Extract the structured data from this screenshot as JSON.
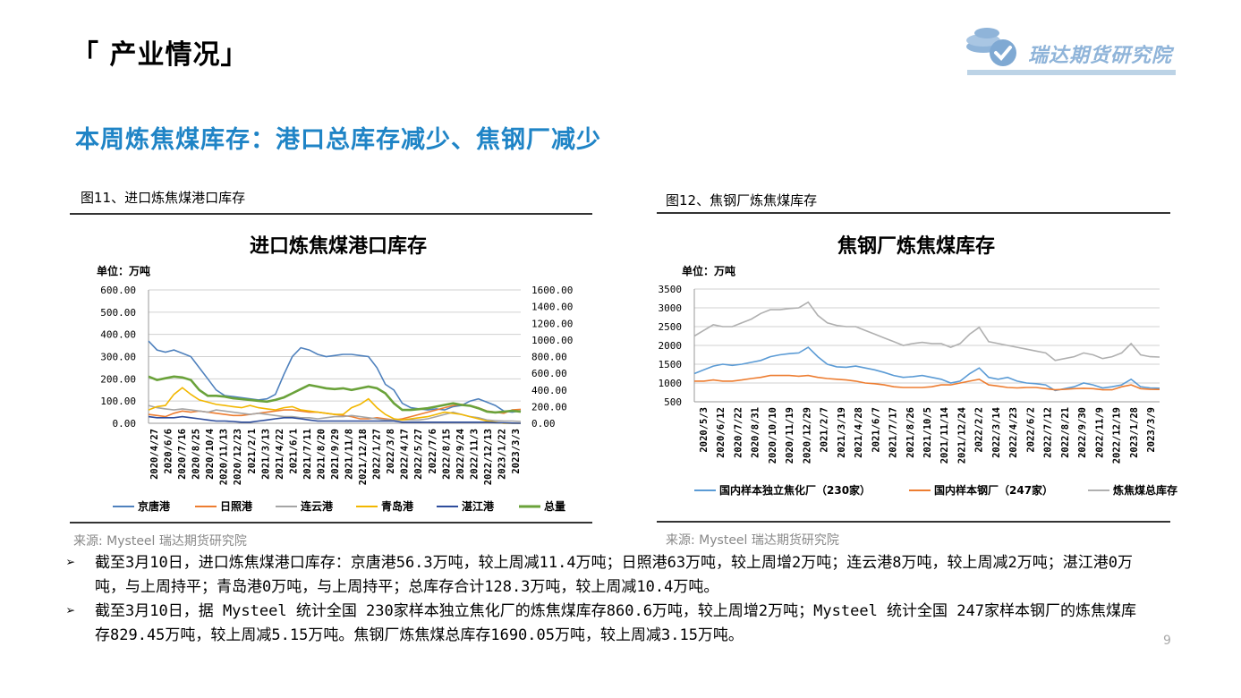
{
  "header": {
    "title": "「 产业情况」",
    "logo_text": "瑞达期货研究院"
  },
  "subtitle": "本周炼焦煤库存：港口总库存减少、焦钢厂减少",
  "figures": [
    {
      "caption": "图11、进口炼焦煤港口库存",
      "source": "来源:   Mysteel   瑞达期货研究院"
    },
    {
      "caption": "图12、焦钢厂炼焦煤库存",
      "source": "来源:   Mysteel   瑞达期货研究院"
    }
  ],
  "bullets": [
    "截至3月10日，进口炼焦煤港口库存：京唐港56.3万吨，较上周减11.4万吨；日照港63万吨，较上周增2万吨；连云港8万吨，较上周减2万吨；湛江港0万吨，与上周持平；青岛港0万吨，与上周持平；总库存合计128.3万吨，较上周减10.4万吨。",
    "截至3月10日，据 Mysteel 统计全国 230家样本独立焦化厂的炼焦煤库存860.6万吨，较上周增2万吨；Mysteel 统计全国 247家样本钢厂的炼焦煤库存829.45万吨，较上周减5.15万吨。焦钢厂炼焦煤总库存1690.05万吨，较上周减3.15万吨。"
  ],
  "page_number": "9",
  "bullet_mark": "➢",
  "chart_data": [
    {
      "type": "line",
      "title": "进口炼焦煤港口库存",
      "unit_label": "单位：万吨",
      "ylim": [
        0,
        600
      ],
      "y2lim": [
        0,
        1600
      ],
      "yticks": [
        "0.00",
        "100.00",
        "200.00",
        "300.00",
        "400.00",
        "500.00",
        "600.00"
      ],
      "y2ticks": [
        "0.00",
        "200.00",
        "400.00",
        "600.00",
        "800.00",
        "1000.00",
        "1200.00",
        "1400.00",
        "1600.00"
      ],
      "x_ticks": [
        "2020/4/27",
        "2020/6/6",
        "2020/7/16",
        "2020/8/25",
        "2020/10/4",
        "2020/11/13",
        "2020/12/23",
        "2021/2/1",
        "2021/3/13",
        "2021/4/22",
        "2021/6/1",
        "2021/7/11",
        "2021/8/20",
        "2021/9/29",
        "2021/11/8",
        "2021/12/18",
        "2022/1/27",
        "2022/3/8",
        "2022/4/17",
        "2022/5/27",
        "2022/7/6",
        "2022/8/15",
        "2022/9/24",
        "2022/11/3",
        "2022/12/13",
        "2023/1/22",
        "2023/3/3"
      ],
      "grid": true,
      "legend": "bottom",
      "series": [
        {
          "name": "京唐港",
          "axis": "left",
          "color": "#4f81bd",
          "values": [
            370,
            330,
            320,
            330,
            315,
            300,
            250,
            200,
            150,
            125,
            120,
            115,
            110,
            105,
            110,
            130,
            220,
            300,
            340,
            330,
            310,
            300,
            305,
            310,
            310,
            305,
            300,
            250,
            175,
            150,
            90,
            70,
            65,
            60,
            65,
            60,
            75,
            80,
            100,
            110,
            95,
            80,
            55,
            50,
            56
          ]
        },
        {
          "name": "日照港",
          "axis": "left",
          "color": "#ed7d31",
          "values": [
            40,
            35,
            30,
            45,
            55,
            50,
            55,
            50,
            45,
            40,
            35,
            35,
            40,
            45,
            50,
            55,
            60,
            60,
            55,
            50,
            50,
            45,
            40,
            35,
            30,
            20,
            20,
            25,
            20,
            15,
            20,
            30,
            40,
            50,
            60,
            70,
            80,
            85,
            80,
            70,
            55,
            50,
            45,
            60,
            63
          ]
        },
        {
          "name": "连云港",
          "axis": "left",
          "color": "#a5a5a5",
          "values": [
            80,
            70,
            65,
            60,
            65,
            60,
            55,
            50,
            60,
            55,
            50,
            45,
            40,
            45,
            40,
            35,
            30,
            30,
            25,
            25,
            20,
            25,
            30,
            30,
            35,
            30,
            25,
            20,
            15,
            15,
            15,
            15,
            15,
            20,
            30,
            40,
            50,
            40,
            30,
            25,
            15,
            12,
            10,
            10,
            8
          ]
        },
        {
          "name": "青岛港",
          "axis": "left",
          "color": "#f2b700",
          "values": [
            60,
            75,
            80,
            130,
            160,
            130,
            105,
            95,
            85,
            80,
            75,
            70,
            80,
            70,
            65,
            60,
            70,
            75,
            60,
            55,
            50,
            45,
            40,
            40,
            70,
            85,
            110,
            70,
            40,
            20,
            15,
            20,
            25,
            30,
            40,
            50,
            45,
            40,
            30,
            20,
            10,
            5,
            0,
            0,
            0
          ]
        },
        {
          "name": "湛江港",
          "axis": "left",
          "color": "#2e4d9c",
          "values": [
            30,
            25,
            25,
            25,
            30,
            25,
            20,
            15,
            10,
            10,
            8,
            5,
            5,
            10,
            15,
            20,
            25,
            25,
            20,
            15,
            10,
            10,
            10,
            10,
            10,
            10,
            10,
            10,
            10,
            10,
            5,
            5,
            5,
            5,
            5,
            5,
            5,
            5,
            5,
            5,
            5,
            3,
            2,
            1,
            0
          ]
        },
        {
          "name": "总量",
          "axis": "right",
          "color": "#6aa23a",
          "values": [
            560,
            520,
            540,
            560,
            550,
            520,
            400,
            330,
            330,
            320,
            300,
            290,
            280,
            270,
            260,
            280,
            310,
            360,
            410,
            460,
            440,
            420,
            410,
            420,
            400,
            420,
            440,
            420,
            360,
            240,
            160,
            160,
            170,
            180,
            200,
            220,
            240,
            220,
            210,
            180,
            140,
            130,
            140,
            150,
            138
          ]
        }
      ]
    },
    {
      "type": "line",
      "title": "焦钢厂炼焦煤库存",
      "unit_label": "单位：万吨",
      "ylim": [
        500,
        3500
      ],
      "yticks": [
        "500",
        "1000",
        "1500",
        "2000",
        "2500",
        "3000",
        "3500"
      ],
      "x_ticks": [
        "2020/5/3",
        "2020/6/12",
        "2020/7/22",
        "2020/8/31",
        "2020/10/10",
        "2020/11/19",
        "2020/12/29",
        "2021/2/7",
        "2021/3/19",
        "2021/4/28",
        "2021/6/7",
        "2021/7/17",
        "2021/8/26",
        "2021/10/5",
        "2021/11/14",
        "2021/12/24",
        "2022/2/2",
        "2022/3/14",
        "2022/4/23",
        "2022/6/2",
        "2022/7/12",
        "2022/8/21",
        "2022/9/30",
        "2022/11/9",
        "2022/12/19",
        "2023/1/28",
        "2023/3/9"
      ],
      "grid": true,
      "legend": "bottom",
      "series": [
        {
          "name": "国内样本独立焦化厂（230家）",
          "color": "#5b9bd5",
          "values": [
            1250,
            1350,
            1450,
            1500,
            1470,
            1500,
            1550,
            1600,
            1700,
            1750,
            1780,
            1800,
            1950,
            1700,
            1500,
            1430,
            1420,
            1450,
            1400,
            1350,
            1280,
            1200,
            1150,
            1170,
            1200,
            1150,
            1100,
            1000,
            1050,
            1250,
            1400,
            1150,
            1100,
            1150,
            1050,
            1000,
            980,
            950,
            800,
            850,
            900,
            1000,
            950,
            870,
            900,
            950,
            1100,
            900,
            870,
            861
          ]
        },
        {
          "name": "国内样本钢厂（247家）",
          "color": "#ed7d31",
          "values": [
            1050,
            1050,
            1080,
            1050,
            1050,
            1080,
            1120,
            1150,
            1200,
            1200,
            1200,
            1180,
            1200,
            1150,
            1120,
            1100,
            1080,
            1050,
            1000,
            980,
            950,
            900,
            880,
            880,
            880,
            900,
            950,
            950,
            1000,
            1050,
            1100,
            950,
            920,
            880,
            870,
            880,
            880,
            850,
            820,
            830,
            850,
            860,
            850,
            820,
            820,
            900,
            950,
            850,
            830,
            829
          ]
        },
        {
          "name": "炼焦煤总库存",
          "color": "#b0b0b0",
          "values": [
            2250,
            2400,
            2550,
            2500,
            2500,
            2600,
            2700,
            2850,
            2950,
            2950,
            2980,
            3000,
            3150,
            2800,
            2600,
            2530,
            2500,
            2500,
            2400,
            2300,
            2200,
            2100,
            2000,
            2050,
            2080,
            2050,
            2050,
            1950,
            2050,
            2300,
            2480,
            2100,
            2050,
            2000,
            1950,
            1900,
            1850,
            1800,
            1600,
            1650,
            1700,
            1800,
            1750,
            1650,
            1700,
            1800,
            2050,
            1750,
            1700,
            1690
          ]
        }
      ]
    }
  ]
}
